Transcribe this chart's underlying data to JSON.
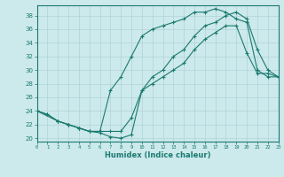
{
  "xlabel": "Humidex (Indice chaleur)",
  "bg_color": "#cce9ec",
  "line_color": "#1a7a6e",
  "grid_color": "#b0d4d8",
  "xlim": [
    0,
    23
  ],
  "ylim": [
    19.5,
    39.5
  ],
  "xticks": [
    0,
    1,
    2,
    3,
    4,
    5,
    6,
    7,
    8,
    9,
    10,
    11,
    12,
    13,
    14,
    15,
    16,
    17,
    18,
    19,
    20,
    21,
    22,
    23
  ],
  "yticks": [
    20,
    22,
    24,
    26,
    28,
    30,
    32,
    34,
    36,
    38
  ],
  "line1_x": [
    0,
    1,
    2,
    3,
    4,
    5,
    6,
    7,
    8,
    9,
    10,
    11,
    12,
    13,
    14,
    15,
    16,
    17,
    18,
    19,
    20,
    21,
    22,
    23
  ],
  "line1_y": [
    24,
    23.5,
    22.5,
    22,
    21.5,
    21,
    21,
    21,
    21,
    23,
    27,
    28,
    29,
    30,
    31,
    33,
    34.5,
    35.5,
    36.5,
    36.5,
    32.5,
    29.5,
    29.5,
    29
  ],
  "line2_x": [
    0,
    2,
    3,
    4,
    5,
    6,
    7,
    8,
    9,
    10,
    11,
    12,
    13,
    14,
    15,
    16,
    17,
    18,
    19,
    20,
    21,
    22,
    23
  ],
  "line2_y": [
    24,
    22.5,
    22,
    21.5,
    21,
    21,
    27,
    29,
    32,
    35,
    36,
    36.5,
    37,
    37.5,
    38.5,
    38.5,
    39,
    38.5,
    37.5,
    37,
    30,
    29,
    29
  ],
  "line3_x": [
    0,
    1,
    2,
    3,
    4,
    5,
    6,
    7,
    8,
    9,
    10,
    11,
    12,
    13,
    14,
    15,
    16,
    17,
    18,
    19,
    20,
    21,
    22,
    23
  ],
  "line3_y": [
    24,
    23.5,
    22.5,
    22,
    21.5,
    21,
    20.8,
    20.2,
    20,
    20.5,
    27,
    29,
    30,
    32,
    33,
    35,
    36.5,
    37,
    38,
    38.5,
    37.5,
    33,
    30,
    29
  ]
}
